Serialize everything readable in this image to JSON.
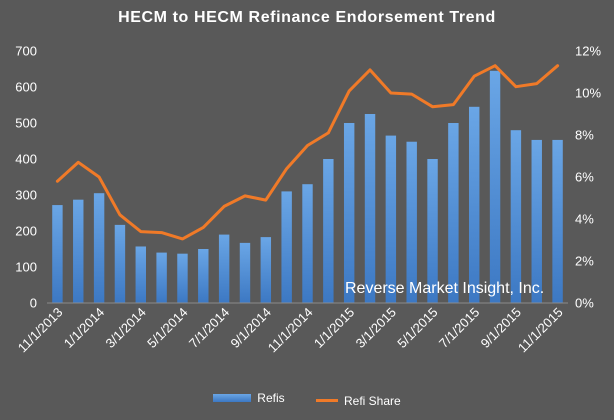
{
  "chart_data": {
    "type": "bar",
    "title": "HECM to HECM Refinance Endorsement Trend",
    "categories": [
      "11/1/2013",
      "12/1/2013",
      "1/1/2014",
      "2/1/2014",
      "3/1/2014",
      "4/1/2014",
      "5/1/2014",
      "6/1/2014",
      "7/1/2014",
      "8/1/2014",
      "9/1/2014",
      "10/1/2014",
      "11/1/2014",
      "12/1/2014",
      "1/1/2015",
      "2/1/2015",
      "3/1/2015",
      "4/1/2015",
      "5/1/2015",
      "6/1/2015",
      "7/1/2015",
      "8/1/2015",
      "9/1/2015",
      "10/1/2015",
      "11/1/2015"
    ],
    "x_tick_labels": [
      "11/1/2013",
      "1/1/2014",
      "3/1/2014",
      "5/1/2014",
      "7/1/2014",
      "9/1/2014",
      "11/1/2014",
      "1/1/2015",
      "3/1/2015",
      "5/1/2015",
      "7/1/2015",
      "9/1/2015",
      "11/1/2015"
    ],
    "series": [
      {
        "name": "Refis",
        "type": "bar",
        "axis": "left",
        "values": [
          272,
          287,
          305,
          217,
          157,
          140,
          137,
          150,
          190,
          167,
          183,
          310,
          330,
          400,
          500,
          525,
          465,
          448,
          400,
          500,
          545,
          645,
          480,
          453,
          453
        ]
      },
      {
        "name": "Refi Share",
        "type": "line",
        "axis": "right",
        "values": [
          5.8,
          6.7,
          6.0,
          4.2,
          3.4,
          3.35,
          3.05,
          3.6,
          4.6,
          5.1,
          4.9,
          6.4,
          7.5,
          8.1,
          10.1,
          11.1,
          10.0,
          9.95,
          9.35,
          9.45,
          10.8,
          11.3,
          10.3,
          10.45,
          11.3
        ]
      }
    ],
    "y_left": {
      "ylim": [
        0,
        700
      ],
      "ticks": [
        "0",
        "100",
        "200",
        "300",
        "400",
        "500",
        "600",
        "700"
      ]
    },
    "y_right": {
      "ylim": [
        0,
        12
      ],
      "ticks": [
        "0%",
        "2%",
        "4%",
        "6%",
        "8%",
        "10%",
        "12%"
      ]
    },
    "annotation": "Reverse Market Insight, Inc.",
    "legend_position": "bottom",
    "grid": false,
    "colors": {
      "background": "#595959",
      "bar": "#4f8fd9",
      "line": "#f07a28",
      "text": "#ffffff"
    }
  }
}
